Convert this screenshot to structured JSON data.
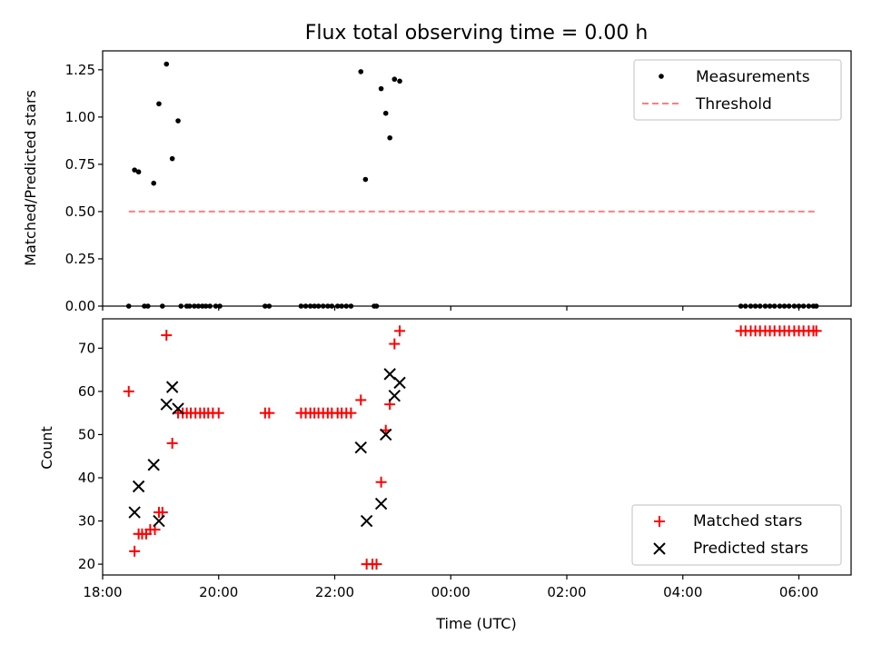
{
  "chart_data": [
    {
      "type": "scatter",
      "title": "Flux total observing time = 0.00 h",
      "xlabel": "",
      "ylabel": "Matched/Predicted stars",
      "xlim": [
        18.0,
        30.9
      ],
      "ylim": [
        0.0,
        1.35
      ],
      "yticks": [
        0.0,
        0.25,
        0.5,
        0.75,
        1.0,
        1.25
      ],
      "ytick_labels": [
        "0.00",
        "0.25",
        "0.50",
        "0.75",
        "1.00",
        "1.25"
      ],
      "xticks": [
        18,
        20,
        22,
        24,
        26,
        28,
        30
      ],
      "legend": {
        "placement": "top-right",
        "entries": [
          "Measurements",
          "Threshold"
        ]
      },
      "series": [
        {
          "name": "Measurements",
          "marker": "dot",
          "color": "#000000",
          "points": [
            [
              18.45,
              0.0
            ],
            [
              18.55,
              0.72
            ],
            [
              18.62,
              0.71
            ],
            [
              18.72,
              0.0
            ],
            [
              18.78,
              0.0
            ],
            [
              18.88,
              0.65
            ],
            [
              18.97,
              1.07
            ],
            [
              19.03,
              0.0
            ],
            [
              19.1,
              1.28
            ],
            [
              19.2,
              0.78
            ],
            [
              19.3,
              0.98
            ],
            [
              19.35,
              0.0
            ],
            [
              19.45,
              0.0
            ],
            [
              19.5,
              0.0
            ],
            [
              19.58,
              0.0
            ],
            [
              19.65,
              0.0
            ],
            [
              19.72,
              0.0
            ],
            [
              19.78,
              0.0
            ],
            [
              19.85,
              0.0
            ],
            [
              19.95,
              0.0
            ],
            [
              20.02,
              0.0
            ],
            [
              20.8,
              0.0
            ],
            [
              20.87,
              0.0
            ],
            [
              21.42,
              0.0
            ],
            [
              21.5,
              0.0
            ],
            [
              21.58,
              0.0
            ],
            [
              21.65,
              0.0
            ],
            [
              21.72,
              0.0
            ],
            [
              21.8,
              0.0
            ],
            [
              21.88,
              0.0
            ],
            [
              21.95,
              0.0
            ],
            [
              22.05,
              0.0
            ],
            [
              22.12,
              0.0
            ],
            [
              22.2,
              0.0
            ],
            [
              22.28,
              0.0
            ],
            [
              22.45,
              1.24
            ],
            [
              22.53,
              0.67
            ],
            [
              22.68,
              0.0
            ],
            [
              22.72,
              0.0
            ],
            [
              22.8,
              1.15
            ],
            [
              22.88,
              1.02
            ],
            [
              22.95,
              0.89
            ],
            [
              23.03,
              1.2
            ],
            [
              23.12,
              1.19
            ],
            [
              29.0,
              0.0
            ],
            [
              29.08,
              0.0
            ],
            [
              29.17,
              0.0
            ],
            [
              29.25,
              0.0
            ],
            [
              29.33,
              0.0
            ],
            [
              29.42,
              0.0
            ],
            [
              29.5,
              0.0
            ],
            [
              29.58,
              0.0
            ],
            [
              29.67,
              0.0
            ],
            [
              29.75,
              0.0
            ],
            [
              29.83,
              0.0
            ],
            [
              29.92,
              0.0
            ],
            [
              30.0,
              0.0
            ],
            [
              30.08,
              0.0
            ],
            [
              30.17,
              0.0
            ],
            [
              30.25,
              0.0
            ],
            [
              30.3,
              0.0
            ]
          ]
        },
        {
          "name": "Threshold",
          "marker": "dashed-line",
          "color": "#ff7f7f",
          "points": [
            [
              18.45,
              0.5
            ],
            [
              30.3,
              0.5
            ]
          ]
        }
      ]
    },
    {
      "type": "scatter",
      "title": "",
      "xlabel": "Time (UTC)",
      "ylabel": "Count",
      "xlim": [
        18.0,
        30.9
      ],
      "ylim": [
        17.5,
        76.8
      ],
      "yticks": [
        20,
        30,
        40,
        50,
        60,
        70
      ],
      "ytick_labels": [
        "20",
        "30",
        "40",
        "50",
        "60",
        "70"
      ],
      "xticks": [
        18,
        20,
        22,
        24,
        26,
        28,
        30
      ],
      "xtick_labels": [
        "18:00",
        "20:00",
        "22:00",
        "00:00",
        "02:00",
        "04:00",
        "06:00"
      ],
      "legend": {
        "placement": "bottom-right",
        "entries": [
          "Matched stars",
          "Predicted stars"
        ]
      },
      "series": [
        {
          "name": "Matched stars",
          "marker": "plus",
          "color": "#ff0000",
          "points": [
            [
              18.45,
              60
            ],
            [
              18.55,
              23
            ],
            [
              18.62,
              27
            ],
            [
              18.68,
              27
            ],
            [
              18.75,
              27
            ],
            [
              18.82,
              28
            ],
            [
              18.9,
              28
            ],
            [
              18.97,
              32
            ],
            [
              19.03,
              32
            ],
            [
              19.1,
              73
            ],
            [
              19.2,
              48
            ],
            [
              19.3,
              55
            ],
            [
              19.38,
              55
            ],
            [
              19.45,
              55
            ],
            [
              19.52,
              55
            ],
            [
              19.6,
              55
            ],
            [
              19.68,
              55
            ],
            [
              19.75,
              55
            ],
            [
              19.82,
              55
            ],
            [
              19.9,
              55
            ],
            [
              20.0,
              55
            ],
            [
              20.8,
              55
            ],
            [
              20.87,
              55
            ],
            [
              21.42,
              55
            ],
            [
              21.5,
              55
            ],
            [
              21.58,
              55
            ],
            [
              21.65,
              55
            ],
            [
              21.72,
              55
            ],
            [
              21.8,
              55
            ],
            [
              21.88,
              55
            ],
            [
              21.95,
              55
            ],
            [
              22.05,
              55
            ],
            [
              22.12,
              55
            ],
            [
              22.2,
              55
            ],
            [
              22.28,
              55
            ],
            [
              22.45,
              58
            ],
            [
              22.55,
              20
            ],
            [
              22.65,
              20
            ],
            [
              22.72,
              20
            ],
            [
              22.8,
              39
            ],
            [
              22.88,
              51
            ],
            [
              22.95,
              57
            ],
            [
              23.03,
              71
            ],
            [
              23.12,
              74
            ],
            [
              29.0,
              74
            ],
            [
              29.08,
              74
            ],
            [
              29.17,
              74
            ],
            [
              29.25,
              74
            ],
            [
              29.33,
              74
            ],
            [
              29.42,
              74
            ],
            [
              29.5,
              74
            ],
            [
              29.58,
              74
            ],
            [
              29.67,
              74
            ],
            [
              29.75,
              74
            ],
            [
              29.83,
              74
            ],
            [
              29.92,
              74
            ],
            [
              30.0,
              74
            ],
            [
              30.08,
              74
            ],
            [
              30.17,
              74
            ],
            [
              30.25,
              74
            ],
            [
              30.3,
              74
            ]
          ]
        },
        {
          "name": "Predicted stars",
          "marker": "x",
          "color": "#000000",
          "points": [
            [
              18.55,
              32
            ],
            [
              18.62,
              38
            ],
            [
              18.88,
              43
            ],
            [
              18.97,
              30
            ],
            [
              19.1,
              57
            ],
            [
              19.2,
              61
            ],
            [
              19.3,
              56
            ],
            [
              22.45,
              47
            ],
            [
              22.55,
              30
            ],
            [
              22.8,
              34
            ],
            [
              22.88,
              50
            ],
            [
              22.95,
              64
            ],
            [
              23.03,
              59
            ],
            [
              23.12,
              62
            ]
          ]
        }
      ]
    }
  ]
}
